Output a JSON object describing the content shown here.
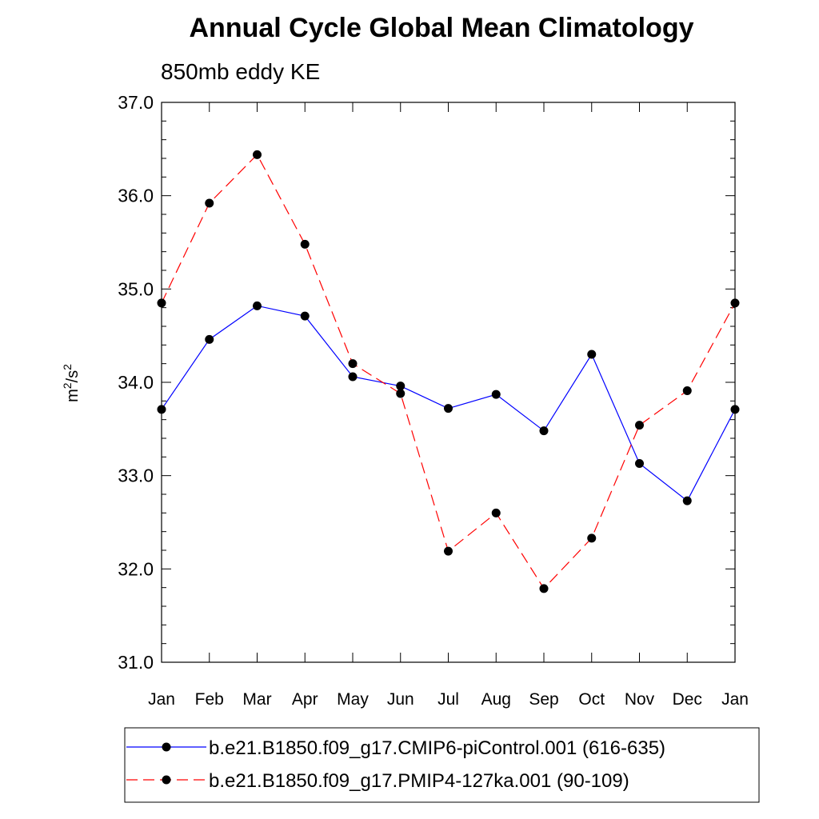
{
  "chart_data": {
    "type": "line",
    "title": "Annual Cycle Global Mean Climatology",
    "subtitle": "850mb eddy KE",
    "ylabel_base": "m",
    "ylabel_sup1": "2",
    "ylabel_mid": "/s",
    "ylabel_sup2": "2",
    "xlabel": "",
    "categories": [
      "Jan",
      "Feb",
      "Mar",
      "Apr",
      "May",
      "Jun",
      "Jul",
      "Aug",
      "Sep",
      "Oct",
      "Nov",
      "Dec",
      "Jan"
    ],
    "ylim": [
      31.0,
      37.0
    ],
    "yticks": [
      "31.0",
      "32.0",
      "33.0",
      "34.0",
      "35.0",
      "36.0",
      "37.0"
    ],
    "grid": false,
    "legend_position": "bottom",
    "series": [
      {
        "name": "b.e21.B1850.f09_g17.CMIP6-piControl.001 (616-635)",
        "color": "#0000ff",
        "dash": "solid",
        "values": [
          33.71,
          34.46,
          34.82,
          34.71,
          34.06,
          33.96,
          33.72,
          33.87,
          33.48,
          34.3,
          33.13,
          32.73,
          33.71
        ]
      },
      {
        "name": "b.e21.B1850.f09_g17.PMIP4-127ka.001 (90-109)",
        "color": "#ff0000",
        "dash": "dashed",
        "values": [
          34.85,
          35.92,
          36.44,
          35.48,
          34.2,
          33.88,
          32.19,
          32.6,
          31.79,
          32.33,
          33.54,
          33.91,
          34.85
        ]
      }
    ]
  }
}
